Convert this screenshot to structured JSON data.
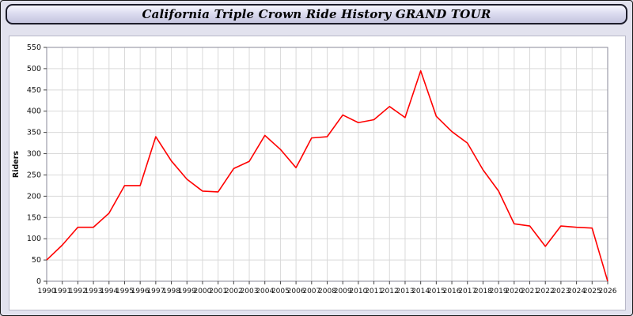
{
  "title": "California Triple Crown Ride History GRAND TOUR",
  "colors": {
    "series_line": "#ff0000",
    "grid": "#d9d9d9",
    "plot_border": "#8a8a9a",
    "titlebar_border": "#1c1c2a",
    "page_background": "#e2e2ee",
    "axis_text": "#111111"
  },
  "chart_data": {
    "type": "line",
    "x": [
      1990,
      1991,
      1992,
      1993,
      1994,
      1995,
      1996,
      1997,
      1998,
      1999,
      2000,
      2001,
      2002,
      2003,
      2004,
      2005,
      2006,
      2007,
      2008,
      2009,
      2010,
      2011,
      2012,
      2013,
      2014,
      2015,
      2016,
      2017,
      2018,
      2019,
      2020,
      2021,
      2022,
      2023,
      2024,
      2025,
      2026
    ],
    "series": [
      {
        "name": "Riders",
        "color": "#ff0000",
        "values": [
          50,
          85,
          127,
          127,
          160,
          225,
          225,
          340,
          283,
          240,
          212,
          210,
          265,
          282,
          343,
          310,
          267,
          337,
          340,
          391,
          373,
          380,
          411,
          385,
          495,
          388,
          352,
          325,
          262,
          212,
          135,
          130,
          82,
          130,
          127,
          125,
          0
        ]
      }
    ],
    "title": "California Triple Crown Ride History GRAND TOUR",
    "xlabel": "",
    "ylabel": "Riders",
    "ylim": [
      0,
      550
    ],
    "ytick_step": 50,
    "grid": true,
    "legend": "none"
  }
}
